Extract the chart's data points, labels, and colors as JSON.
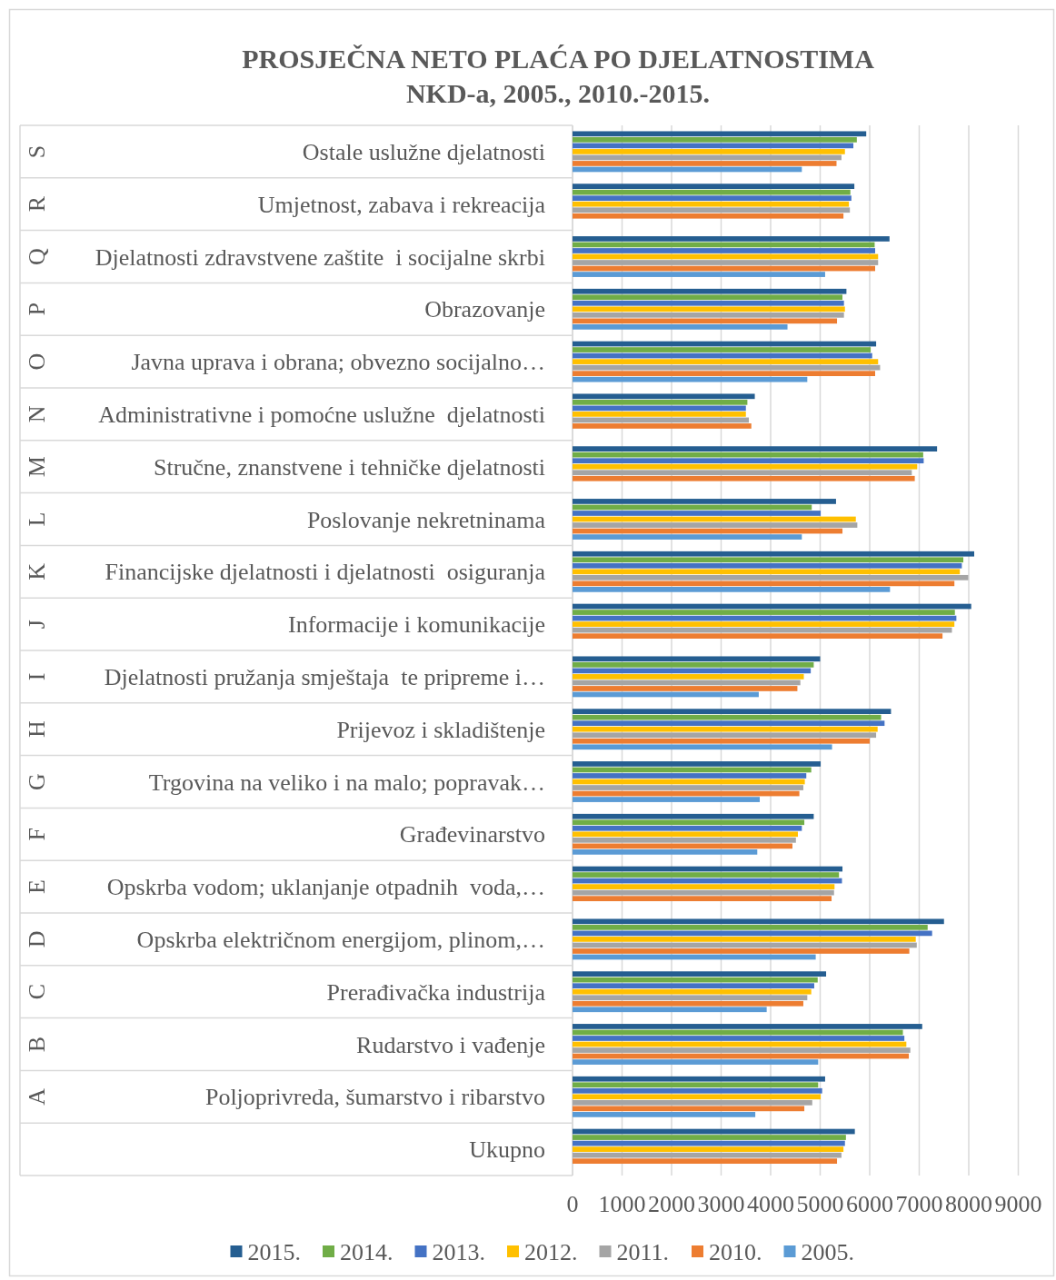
{
  "chart_data": {
    "type": "bar",
    "orientation": "horizontal",
    "title": "PROSJEČNA NETO PLAĆA PO DJELATNOSTIMA\nNKD-a, 2005., 2010.-2015.",
    "categories": [
      "Ostale uslužne djelatnosti",
      "Umjetnost, zabava i rekreacija",
      "Djelatnosti zdravstvene zaštite  i socijalne skrbi",
      "Obrazovanje",
      "Javna uprava i obrana; obvezno socijalno…",
      "Administrativne i pomoćne uslužne  djelatnosti",
      "Stručne, znanstvene i tehničke djelatnosti",
      "Poslovanje nekretninama",
      "Financijske djelatnosti i djelatnosti  osiguranja",
      "Informacije i komunikacije",
      "Djelatnosti pružanja smještaja  te pripreme i…",
      "Prijevoz i skladištenje",
      "Trgovina na veliko i na malo; popravak…",
      "Građevinarstvo",
      "Opskrba vodom; uklanjanje otpadnih  voda,…",
      "Opskrba električnom energijom, plinom,…",
      "Prerađivačka industrija",
      "Rudarstvo i vađenje",
      "Poljoprivreda, šumarstvo i ribarstvo",
      "Ukupno"
    ],
    "series": [
      {
        "name": "2015.",
        "color": "#255e91",
        "values": [
          5930,
          5690,
          6400,
          5530,
          6130,
          3680,
          7360,
          5320,
          8110,
          8050,
          5000,
          6430,
          5010,
          4870,
          5450,
          7500,
          5120,
          7060,
          5100,
          5700
        ]
      },
      {
        "name": "2014.",
        "color": "#70ad47",
        "values": [
          5740,
          5610,
          6100,
          5450,
          6020,
          3530,
          7080,
          4830,
          7890,
          7720,
          4870,
          6230,
          4820,
          4680,
          5380,
          7170,
          4950,
          6670,
          4960,
          5520
        ]
      },
      {
        "name": "2013.",
        "color": "#4472c4",
        "values": [
          5670,
          5630,
          6110,
          5480,
          6050,
          3500,
          7090,
          5010,
          7860,
          7750,
          4810,
          6300,
          4720,
          4630,
          5440,
          7260,
          4880,
          6700,
          5040,
          5500
        ]
      },
      {
        "name": "2012.",
        "color": "#ffc000",
        "values": [
          5500,
          5580,
          6170,
          5500,
          6170,
          3500,
          6960,
          5720,
          7820,
          7710,
          4670,
          6160,
          4690,
          4550,
          5290,
          6930,
          4820,
          6740,
          5010,
          5470
        ]
      },
      {
        "name": "2011.",
        "color": "#a5a5a5",
        "values": [
          5430,
          5600,
          6170,
          5480,
          6210,
          3560,
          6850,
          5750,
          7990,
          7660,
          4600,
          6130,
          4660,
          4510,
          5280,
          6950,
          4740,
          6820,
          4840,
          5430
        ]
      },
      {
        "name": "2010.",
        "color": "#ed7d31",
        "values": [
          5330,
          5470,
          6110,
          5340,
          6110,
          3610,
          6910,
          5450,
          7710,
          7470,
          4540,
          6000,
          4580,
          4440,
          5230,
          6800,
          4660,
          6790,
          4680,
          5340
        ]
      },
      {
        "name": "2005.",
        "color": "#5b9bd5",
        "values": [
          4630,
          null,
          5100,
          4340,
          4740,
          null,
          null,
          4630,
          6410,
          null,
          3760,
          5240,
          3780,
          3730,
          null,
          4910,
          3920,
          4960,
          3690,
          null
        ]
      }
    ],
    "xlim": [
      0,
      9000
    ],
    "xticks": [
      0,
      1000,
      2000,
      3000,
      4000,
      5000,
      6000,
      7000,
      8000,
      9000
    ],
    "grid": "x",
    "legend": "bottom",
    "annotations": [
      "S",
      "R",
      "Q",
      "P",
      "O",
      "N",
      "M",
      "L",
      "K",
      "J",
      "I",
      "H",
      "G",
      "F",
      "E",
      "D",
      "C",
      "B",
      "A"
    ]
  }
}
